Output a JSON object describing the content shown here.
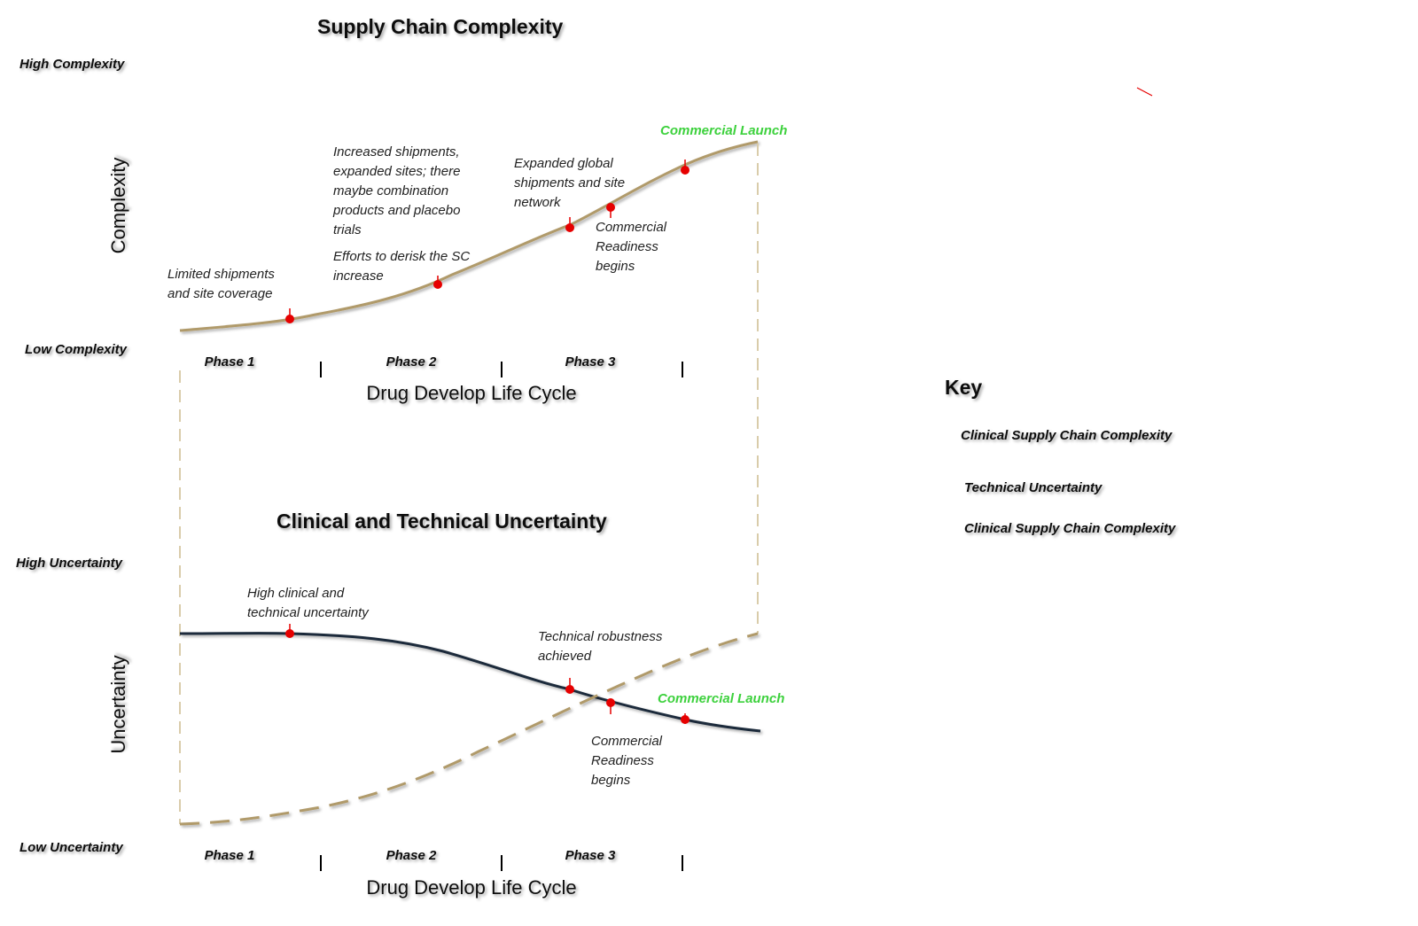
{
  "top_chart": {
    "title": "Supply Chain Complexity",
    "y_axis_label": "Complexity",
    "y_high_label": "High Complexity",
    "y_low_label": "Low Complexity",
    "x_axis_label": "Drug Develop Life Cycle",
    "phases": [
      "Phase 1",
      "Phase 2",
      "Phase 3"
    ],
    "end_label": "Commercial Launch",
    "annotations": [
      {
        "lines": [
          "Limited shipments",
          "and site coverage"
        ]
      },
      {
        "lines": [
          "Increased shipments,",
          "expanded sites; there",
          "maybe combination",
          "products and placebo",
          "trials"
        ]
      },
      {
        "lines": [
          "Efforts to derisk the SC",
          "increase"
        ]
      },
      {
        "lines": [
          "Expanded global",
          "shipments and site",
          "network"
        ]
      },
      {
        "lines": [
          "Commercial",
          "Readiness",
          "begins"
        ]
      }
    ]
  },
  "bottom_chart": {
    "title": "Clinical and Technical Uncertainty",
    "y_axis_label": "Uncertainty",
    "y_high_label": "High Uncertainty",
    "y_low_label": "Low Uncertainty",
    "x_axis_label": "Drug Develop Life Cycle",
    "phases": [
      "Phase 1",
      "Phase 2",
      "Phase 3"
    ],
    "end_label": "Commercial Launch",
    "annotations": [
      {
        "lines": [
          "High clinical and",
          "technical uncertainty"
        ]
      },
      {
        "lines": [
          "Technical robustness",
          "achieved"
        ]
      },
      {
        "lines": [
          "Commercial",
          "Readiness",
          "begins"
        ]
      }
    ]
  },
  "key": {
    "title": "Key",
    "items": [
      {
        "label": "Clinical Supply Chain Complexity",
        "style": "solid",
        "color": "#b09a6b"
      },
      {
        "label": "Technical Uncertainty",
        "style": "solid",
        "color": "#1a2a3a"
      },
      {
        "label": "Clinical Supply Chain Complexity",
        "style": "dashed",
        "color": "#b09a6b"
      }
    ]
  },
  "colors": {
    "complexity_line": "#b09a6b",
    "uncertainty_line": "#1a2a3a",
    "milestone_marker": "#e60000",
    "launch_text": "#3dd13d"
  }
}
